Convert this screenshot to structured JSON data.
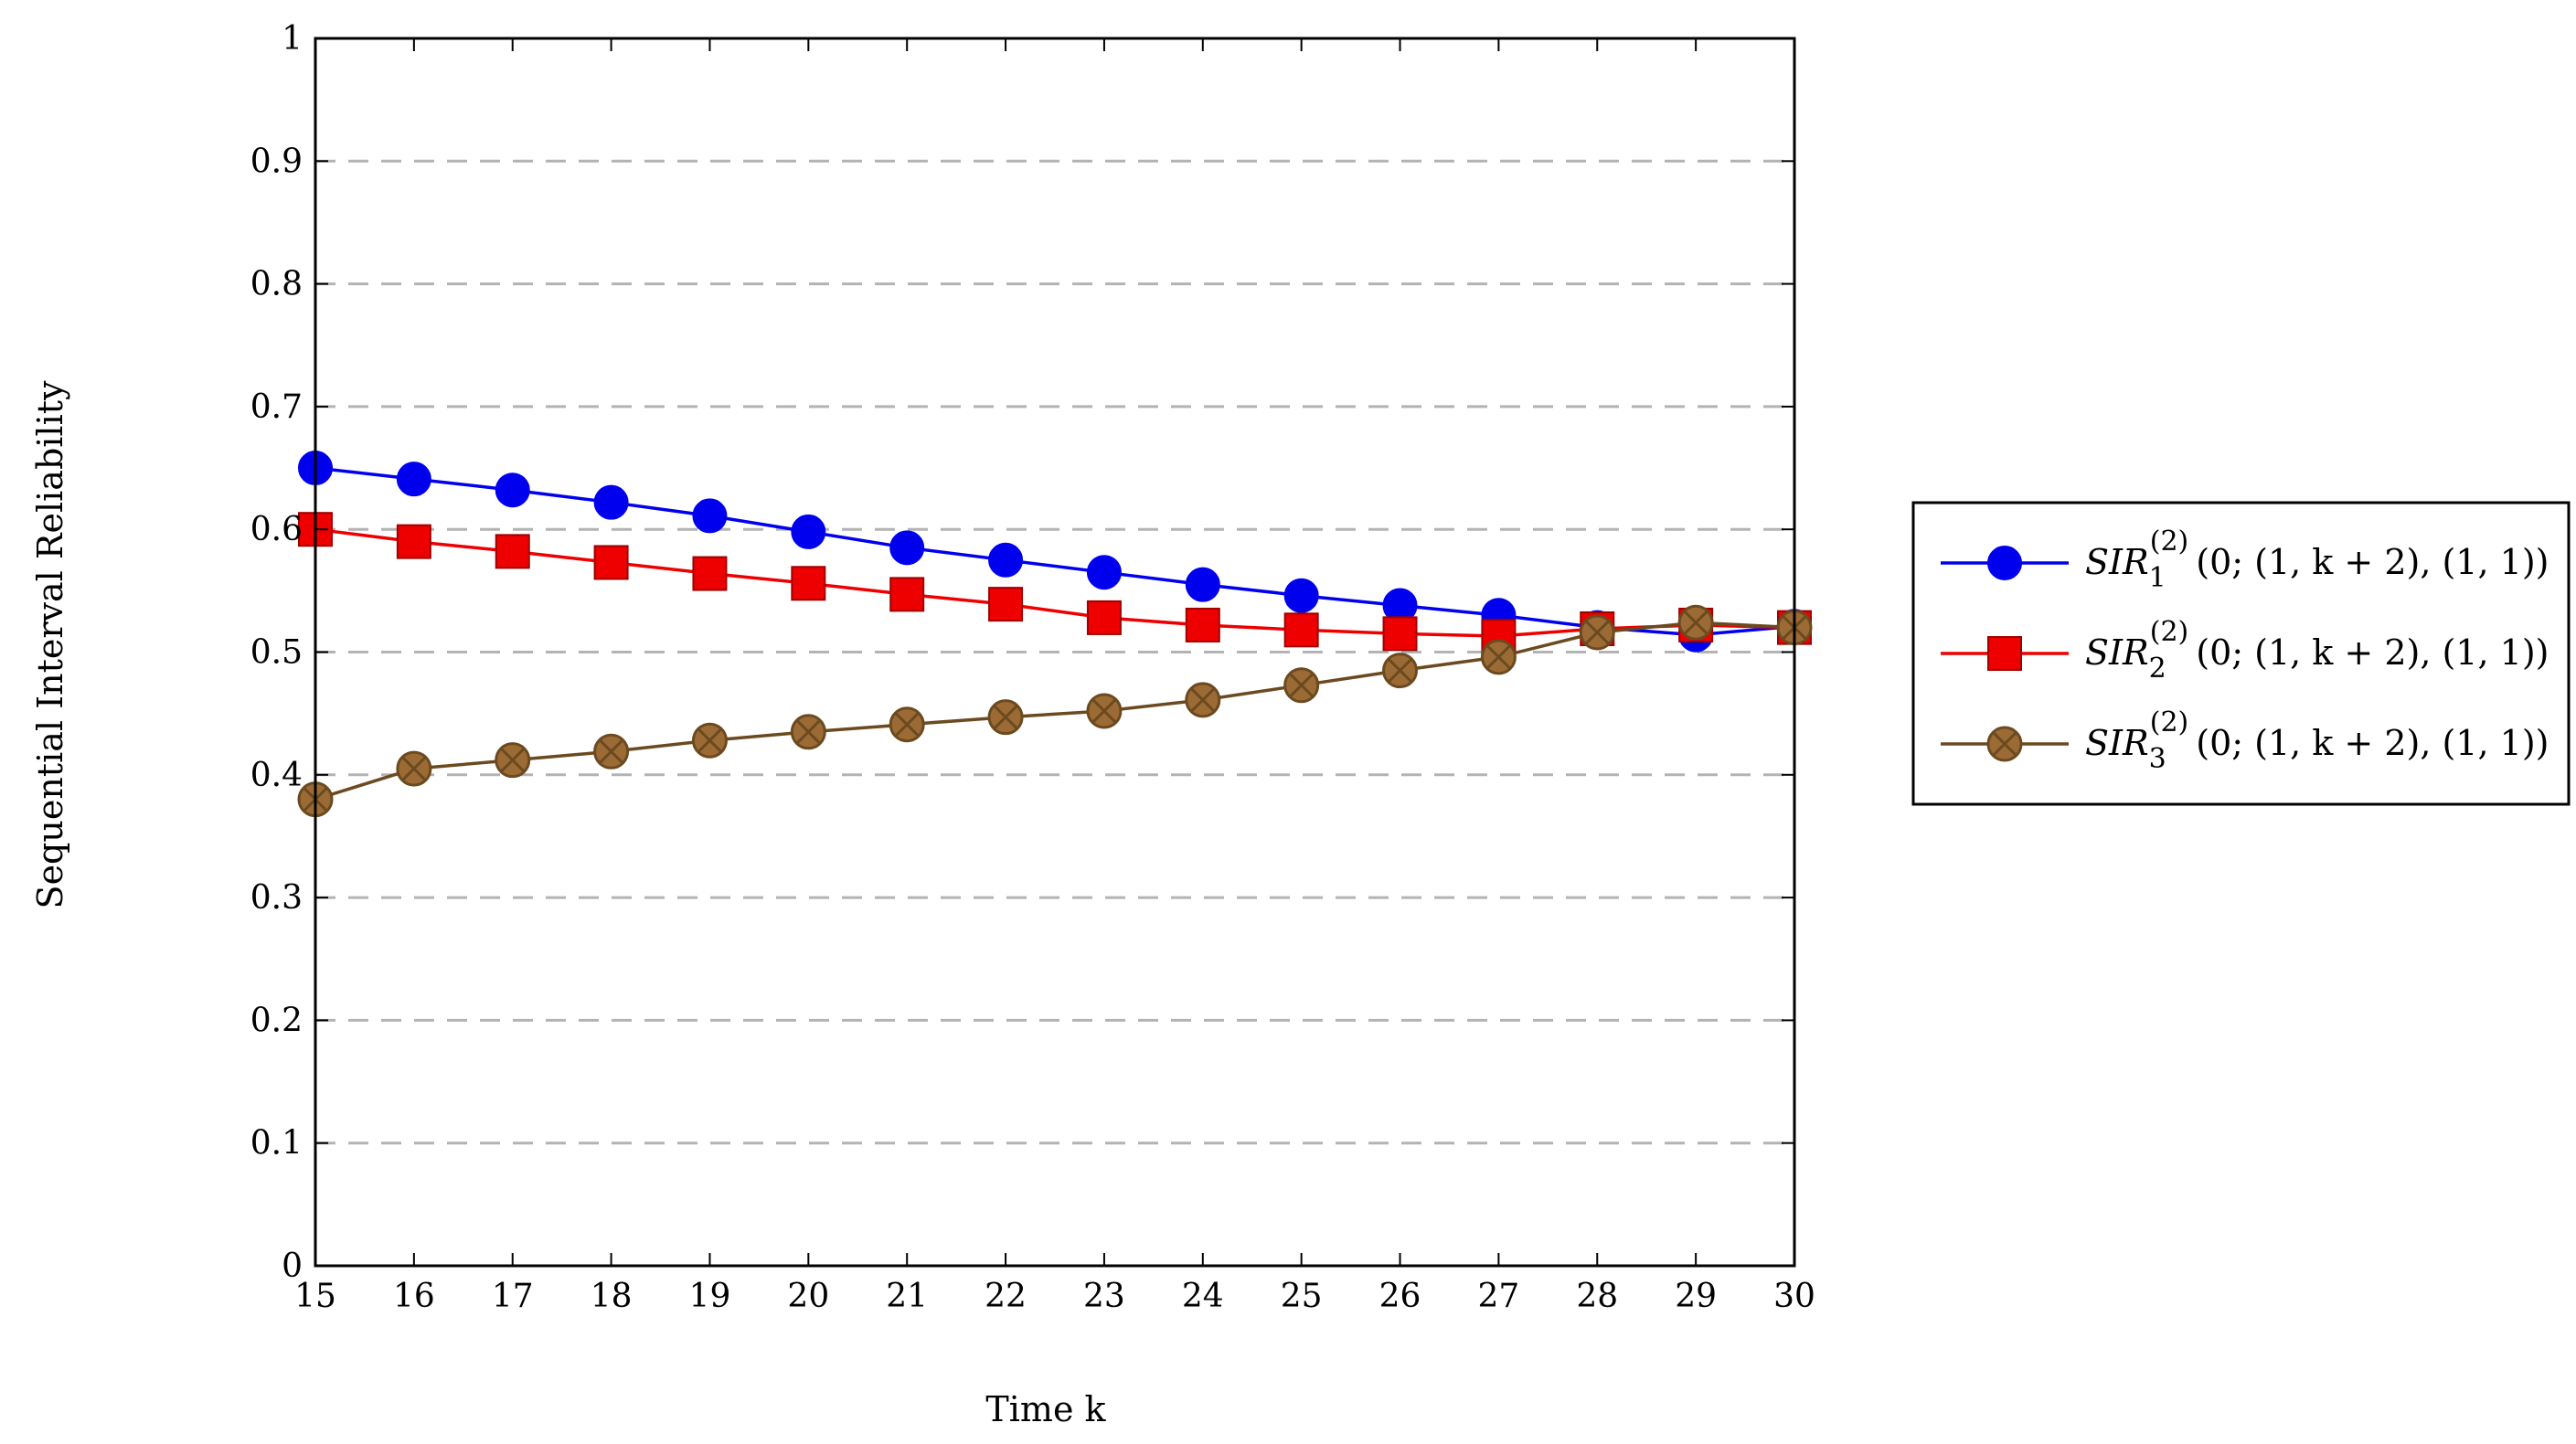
{
  "chart_data": {
    "type": "line",
    "xlabel": "Time k",
    "ylabel": "Sequential Interval Reliability",
    "xlim": [
      15,
      30
    ],
    "ylim": [
      0,
      1
    ],
    "x": [
      15,
      16,
      17,
      18,
      19,
      20,
      21,
      22,
      23,
      24,
      25,
      26,
      27,
      28,
      29,
      30
    ],
    "x_ticks": [
      "15",
      "16",
      "17",
      "18",
      "19",
      "20",
      "21",
      "22",
      "23",
      "24",
      "25",
      "26",
      "27",
      "28",
      "29",
      "30"
    ],
    "y_ticks": [
      "0",
      "0.1",
      "0.2",
      "0.3",
      "0.4",
      "0.5",
      "0.6",
      "0.7",
      "0.8",
      "0.9",
      "1"
    ],
    "grid": "horizontal dashed",
    "legend_position": "right",
    "series": [
      {
        "name": "SIR_1^(2)(0;(1,k+2),(1,1))",
        "legend": {
          "base": "SIR",
          "sub": "1",
          "sup": "(2)",
          "args": "(0; (1, k + 2), (1, 1))"
        },
        "color": "#0000ee",
        "marker": "circle",
        "values": [
          0.65,
          0.641,
          0.632,
          0.622,
          0.611,
          0.598,
          0.585,
          0.575,
          0.565,
          0.555,
          0.546,
          0.538,
          0.53,
          0.52,
          0.514,
          0.521
        ]
      },
      {
        "name": "SIR_2^(2)(0;(1,k+2),(1,1))",
        "legend": {
          "base": "SIR",
          "sub": "2",
          "sup": "(2)",
          "args": "(0; (1, k + 2), (1, 1))"
        },
        "color": "#ee0000",
        "marker": "square",
        "values": [
          0.6,
          0.59,
          0.582,
          0.573,
          0.564,
          0.556,
          0.547,
          0.539,
          0.528,
          0.522,
          0.518,
          0.515,
          0.513,
          0.519,
          0.522,
          0.52
        ]
      },
      {
        "name": "SIR_3^(2)(0;(1,k+2),(1,1))",
        "legend": {
          "base": "SIR",
          "sub": "3",
          "sup": "(2)",
          "args": "(0; (1, k + 2), (1, 1))"
        },
        "color": "#6b4a1f",
        "fill": "#9c6b35",
        "marker": "otimes",
        "values": [
          0.38,
          0.405,
          0.412,
          0.419,
          0.428,
          0.435,
          0.441,
          0.447,
          0.452,
          0.461,
          0.473,
          0.485,
          0.496,
          0.516,
          0.524,
          0.52
        ]
      }
    ]
  }
}
